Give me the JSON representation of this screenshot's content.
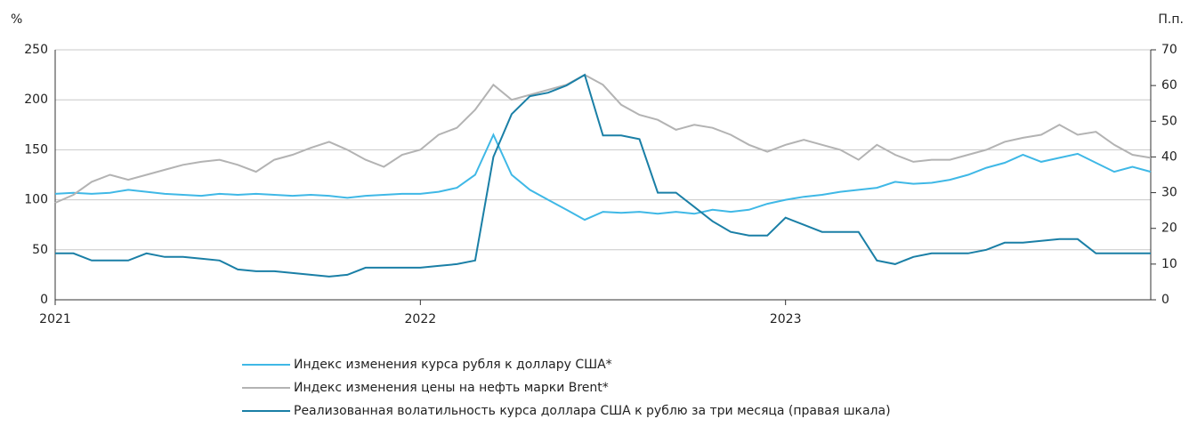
{
  "chart_data": {
    "type": "line",
    "y_unit_label": "%",
    "y2_unit_label": "П.п.",
    "x": [
      2021,
      2021.05,
      2021.1,
      2021.15,
      2021.2,
      2021.25,
      2021.3,
      2021.35,
      2021.4,
      2021.45,
      2021.5,
      2021.55,
      2021.6,
      2021.65,
      2021.7,
      2021.75,
      2021.8,
      2021.85,
      2021.9,
      2021.95,
      2022,
      2022.05,
      2022.1,
      2022.15,
      2022.2,
      2022.25,
      2022.3,
      2022.35,
      2022.4,
      2022.45,
      2022.5,
      2022.55,
      2022.6,
      2022.65,
      2022.7,
      2022.75,
      2022.8,
      2022.85,
      2022.9,
      2022.95,
      2023,
      2023.05,
      2023.1,
      2023.15,
      2023.2,
      2023.25,
      2023.3,
      2023.35,
      2023.4,
      2023.45,
      2023.5,
      2023.55,
      2023.6,
      2023.65,
      2023.7,
      2023.75,
      2023.8,
      2023.85,
      2023.9,
      2023.95,
      2024
    ],
    "xlim": [
      2021,
      2024
    ],
    "xticks": [
      2021,
      2022,
      2023
    ],
    "ylim": [
      0,
      250
    ],
    "yticks": [
      0,
      50,
      100,
      150,
      200,
      250
    ],
    "y2lim": [
      0,
      70
    ],
    "y2ticks": [
      0,
      10,
      20,
      30,
      40,
      50,
      60,
      70
    ],
    "grid": true,
    "series": [
      {
        "name": "Индекс изменения курса рубля к доллару США*",
        "color": "#3fb8e6",
        "values": [
          106,
          107,
          106,
          107,
          110,
          108,
          106,
          105,
          104,
          106,
          105,
          106,
          105,
          104,
          105,
          104,
          102,
          104,
          105,
          106,
          106,
          108,
          112,
          125,
          165,
          125,
          110,
          100,
          90,
          80,
          88,
          87,
          88,
          86,
          88,
          86,
          90,
          88,
          90,
          96,
          100,
          103,
          105,
          108,
          110,
          112,
          118,
          116,
          117,
          120,
          125,
          132,
          137,
          145,
          138,
          142,
          146,
          137,
          128,
          133,
          128
        ]
      },
      {
        "name": "Индекс изменения цены на нефть марки Brent*",
        "color": "#b3b3b3",
        "values": [
          97,
          105,
          118,
          125,
          120,
          125,
          130,
          135,
          138,
          140,
          135,
          128,
          140,
          145,
          152,
          158,
          150,
          140,
          133,
          145,
          150,
          165,
          172,
          190,
          215,
          200,
          205,
          210,
          215,
          225,
          215,
          195,
          185,
          180,
          170,
          175,
          172,
          165,
          155,
          148,
          155,
          160,
          155,
          150,
          140,
          155,
          145,
          138,
          140,
          140,
          145,
          150,
          158,
          162,
          165,
          175,
          165,
          168,
          155,
          145,
          142
        ]
      },
      {
        "name": "Реализованная волатильность курса доллара США к рублю за три месяца (правая шкала)",
        "color": "#1a7fa6",
        "axis": "y2",
        "values": [
          13,
          13,
          11,
          11,
          11,
          13,
          12,
          12,
          11.5,
          11,
          8.5,
          8,
          8,
          7.5,
          7,
          6.5,
          7,
          9,
          9,
          9,
          9,
          9.5,
          10,
          11,
          40,
          52,
          57,
          58,
          60,
          63,
          46,
          46,
          45,
          30,
          30,
          26,
          22,
          19,
          18,
          18,
          23,
          21,
          19,
          19,
          19,
          11,
          10,
          12,
          13,
          13,
          13,
          14,
          16,
          16,
          16.5,
          17,
          17,
          13,
          13,
          13,
          13
        ]
      }
    ]
  }
}
